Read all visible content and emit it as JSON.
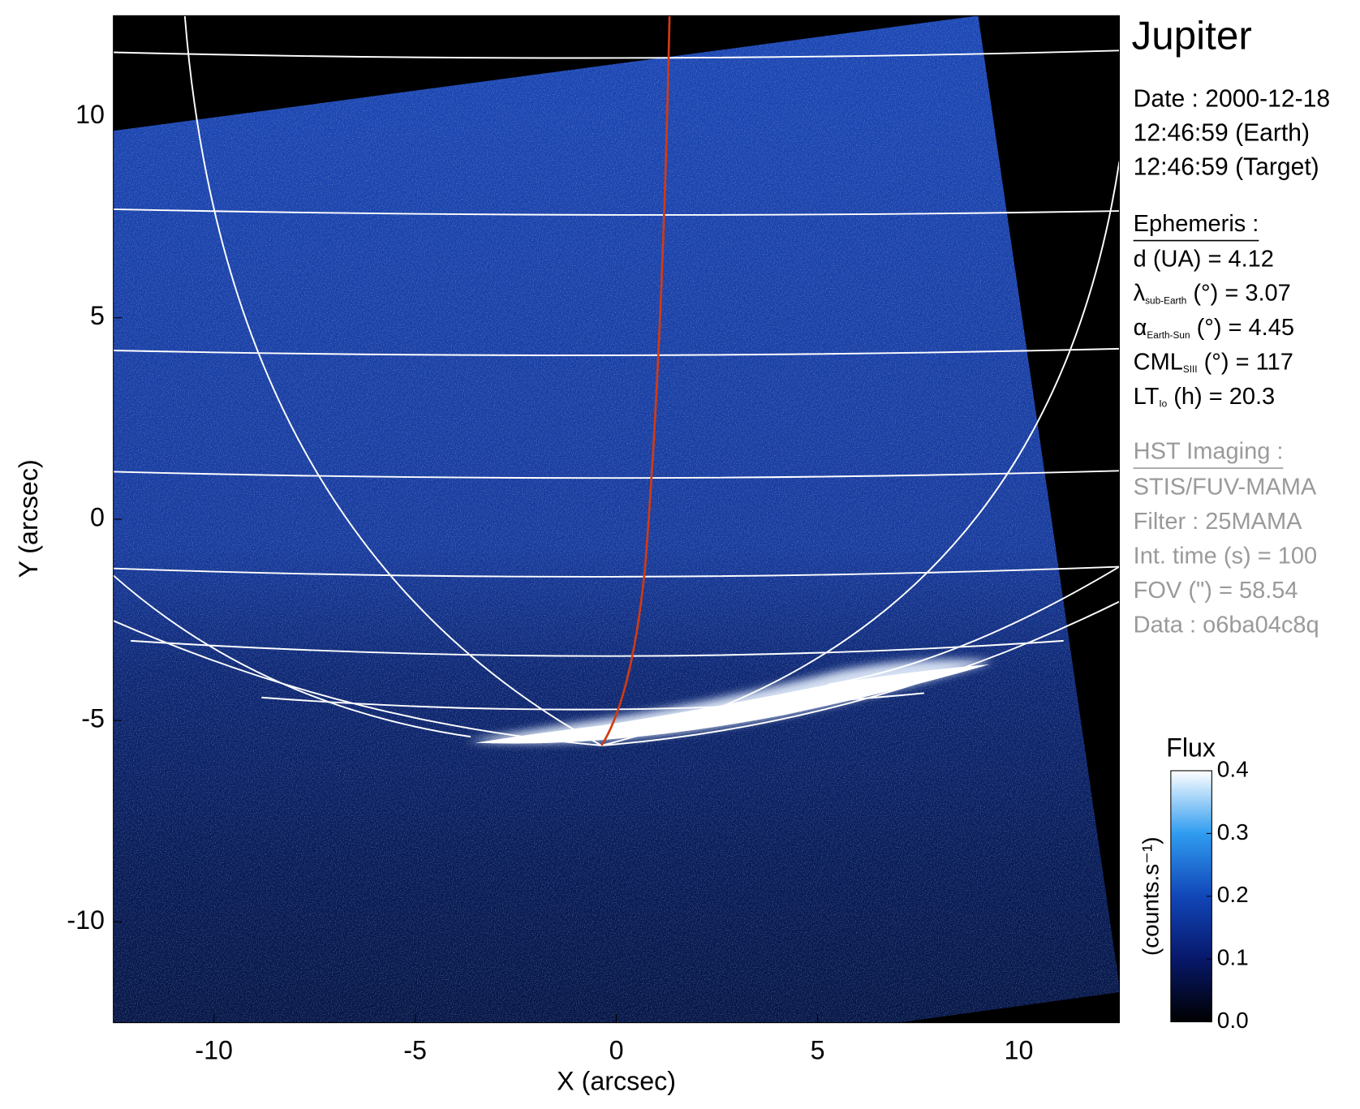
{
  "chart_data": {
    "type": "image",
    "title": "Jupiter",
    "xlabel": "X (arcsec)",
    "ylabel": "Y (arcsec)",
    "xlim": [
      -12.5,
      12.5
    ],
    "ylim": [
      -12.5,
      12.5
    ],
    "xticks": [
      -10,
      -5,
      0,
      5,
      10
    ],
    "yticks": [
      -10,
      -5,
      0,
      5,
      10
    ],
    "colorbar": {
      "title": "Flux",
      "label": "(counts.s⁻¹)",
      "lim": [
        0,
        0.4
      ],
      "ticks": [
        {
          "value": 0,
          "label": "0.0"
        },
        0.1,
        0.2,
        0.3,
        0.4
      ]
    }
  },
  "info": {
    "date": [
      "Date : 2000-12-18",
      "12:46:59 (Earth)",
      "12:46:59 (Target)"
    ],
    "ephemeris": {
      "title": "Ephemeris :",
      "rows": [
        {
          "main": "d (UA)    = 4.12"
        },
        {
          "main": "λ",
          "sub": "sub-Earth",
          "rest": " (°) = 3.07"
        },
        {
          "main": "α",
          "sub": "Earth-Sun",
          "rest": " (°) = 4.45"
        },
        {
          "main": "CML",
          "sub": "SIII",
          "rest": " (°) = 117"
        },
        {
          "main": "LT",
          "sub": "Io",
          "rest": " (h) = 20.3"
        }
      ]
    },
    "imaging": {
      "title": "HST Imaging :",
      "rows": [
        "STIS/FUV-MAMA",
        "Filter : 25MAMA",
        "Int. time (s) = 100",
        "FOV (\") = 58.54",
        "Data : o6ba04c8q"
      ]
    }
  }
}
